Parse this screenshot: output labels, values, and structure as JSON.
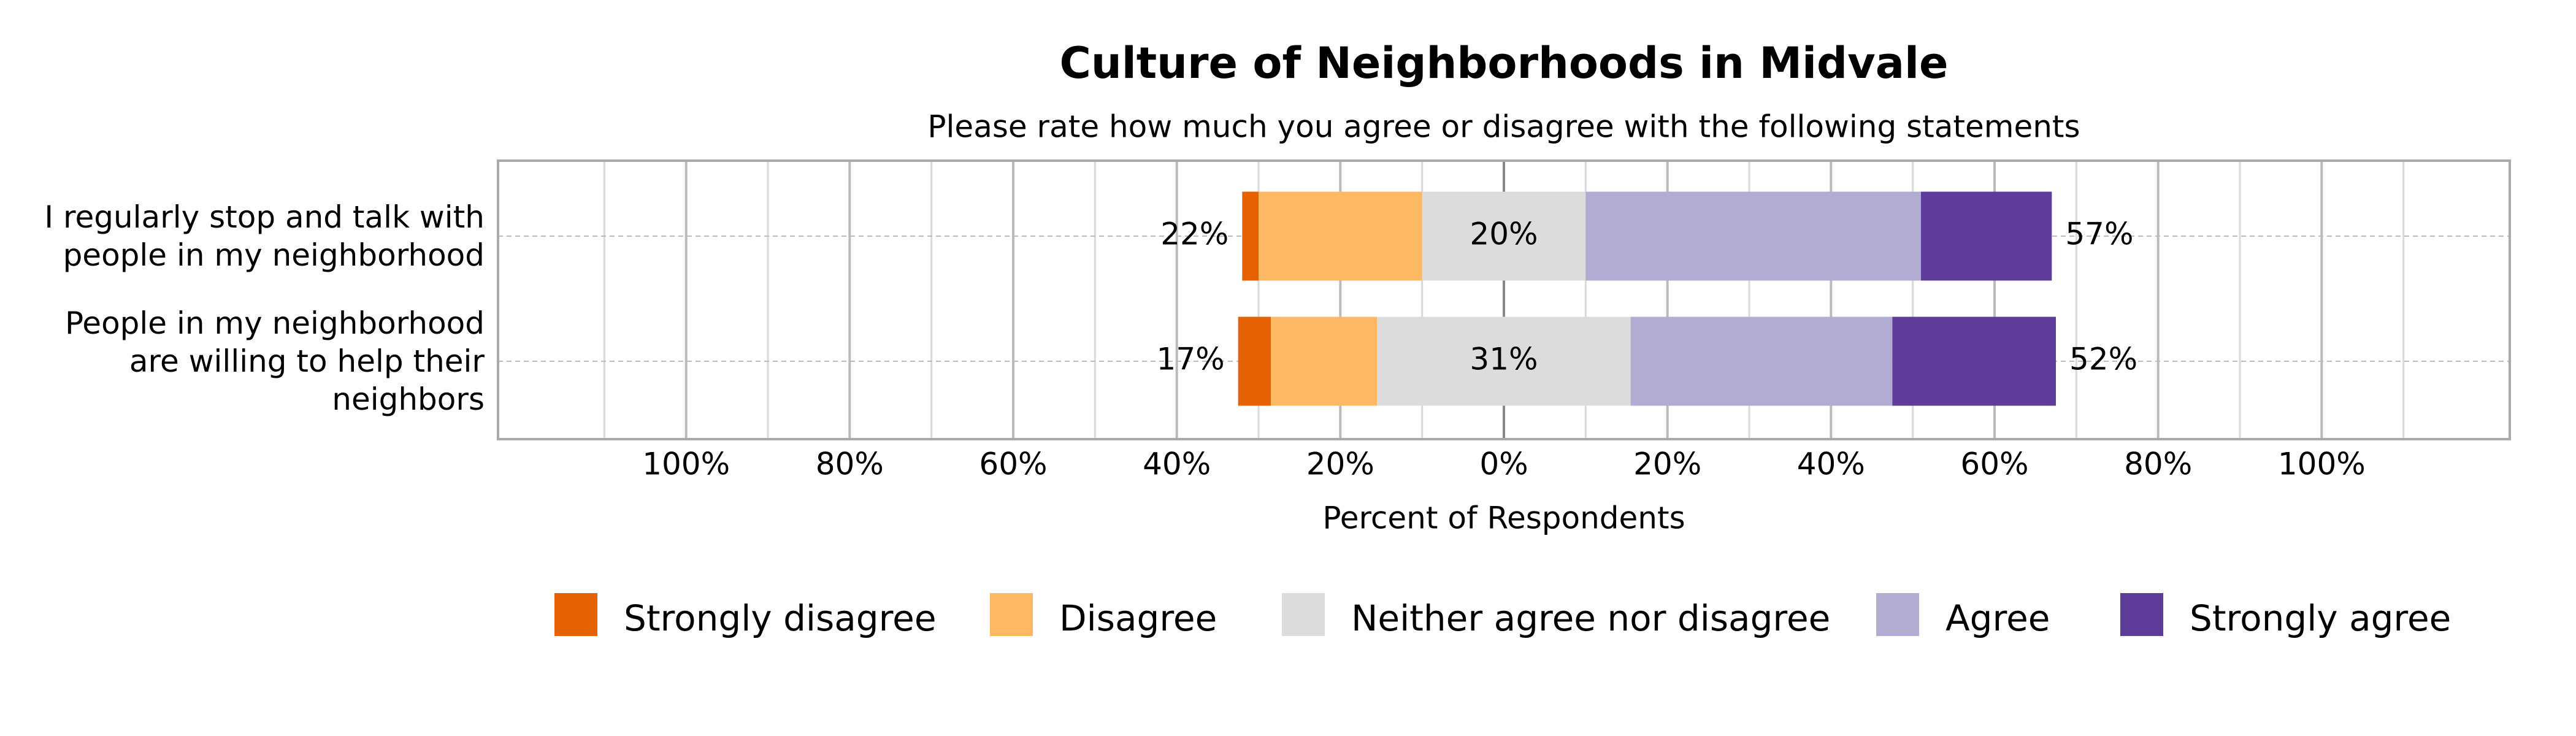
{
  "chart_data": {
    "type": "diverging-bar",
    "title": "Culture of Neighborhoods in Midvale",
    "subtitle": "Please rate how much you agree or disagree with the following statements",
    "x_label": "Percent of Respondents",
    "categories": [
      "I regularly stop and talk with\npeople in my neighborhood",
      "People in my neighborhood\nare willing to help their\nneighbors"
    ],
    "series": [
      {
        "name": "Strongly disagree",
        "color": "#e66101",
        "values": [
          2,
          4
        ]
      },
      {
        "name": "Disagree",
        "color": "#fdb863",
        "values": [
          20,
          13
        ]
      },
      {
        "name": "Neither agree nor disagree",
        "color": "#dcdcdc",
        "values": [
          20,
          31
        ],
        "value_labels": [
          "20%",
          "31%"
        ]
      },
      {
        "name": "Agree",
        "color": "#b2abd2",
        "values": [
          41,
          32
        ]
      },
      {
        "name": "Strongly agree",
        "color": "#5e3c99",
        "values": [
          16,
          20
        ]
      }
    ],
    "left_labels": [
      "22%",
      "17%"
    ],
    "right_labels": [
      "57%",
      "52%"
    ],
    "xlim": [
      -123,
      123
    ],
    "xticks": [
      {
        "value": -100,
        "label": "100%"
      },
      {
        "value": -80,
        "label": "80%"
      },
      {
        "value": -60,
        "label": "60%"
      },
      {
        "value": -40,
        "label": "40%"
      },
      {
        "value": -20,
        "label": "20%"
      },
      {
        "value": 0,
        "label": "0%"
      },
      {
        "value": 20,
        "label": "20%"
      },
      {
        "value": 40,
        "label": "40%"
      },
      {
        "value": 60,
        "label": "60%"
      },
      {
        "value": 80,
        "label": "80%"
      },
      {
        "value": 100,
        "label": "100%"
      }
    ],
    "minor_xticks": [
      -110,
      -90,
      -70,
      -50,
      -30,
      -10,
      10,
      30,
      50,
      70,
      90,
      110
    ],
    "grid": true
  }
}
